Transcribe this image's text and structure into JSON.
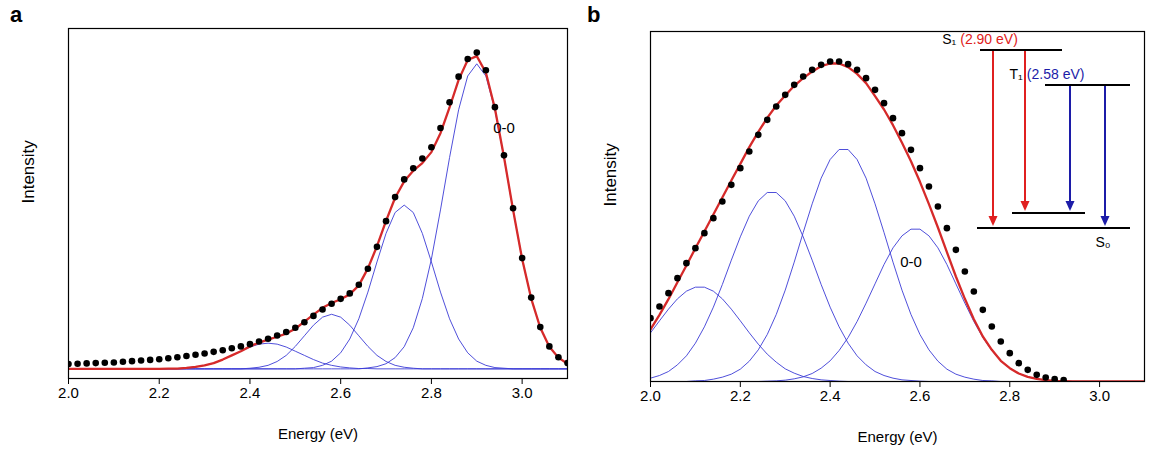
{
  "chart_data": [
    {
      "type": "line",
      "title": "a",
      "x_label": "Energy (eV)",
      "y_label": "Intensity",
      "xlim": [
        2.0,
        3.1
      ],
      "ylim": [
        -0.03,
        1.06
      ],
      "xticks": [
        {
          "value": 2.0,
          "label": "2.0"
        },
        {
          "value": 2.2,
          "label": "2.2"
        },
        {
          "value": 2.4,
          "label": "2.4"
        },
        {
          "value": 2.6,
          "label": "2.6"
        },
        {
          "value": 2.8,
          "label": "2.8"
        },
        {
          "value": 3.0,
          "label": "3.0"
        }
      ],
      "tick_labels": "x",
      "annotations": [
        {
          "text": "0-0",
          "x": 2.96,
          "y": 0.75
        }
      ],
      "x": [
        2,
        2.02,
        2.04,
        2.06,
        2.08,
        2.1,
        2.12,
        2.14,
        2.16,
        2.18,
        2.2,
        2.22,
        2.24,
        2.26,
        2.28,
        2.3,
        2.32,
        2.34,
        2.36,
        2.38,
        2.4,
        2.42,
        2.44,
        2.46,
        2.48,
        2.5,
        2.52,
        2.54,
        2.56,
        2.58,
        2.6,
        2.62,
        2.64,
        2.66,
        2.68,
        2.7,
        2.72,
        2.74,
        2.76,
        2.78,
        2.8,
        2.82,
        2.84,
        2.86,
        2.88,
        2.9,
        2.92,
        2.94,
        2.96,
        2.98,
        3,
        3.02,
        3.04,
        3.06,
        3.08,
        3.1
      ],
      "series": [
        {
          "type": "line",
          "color": "#3b3bd6",
          "line_style": "solid",
          "values": [
            0,
            0,
            0,
            0,
            0,
            0,
            0,
            0,
            0,
            0,
            0,
            0,
            0,
            0,
            0,
            0,
            0,
            0,
            0,
            0,
            0,
            0,
            0,
            0,
            0,
            0,
            0,
            0,
            0,
            0,
            0,
            0,
            0,
            0.003,
            0.007,
            0.016,
            0.035,
            0.069,
            0.128,
            0.219,
            0.342,
            0.495,
            0.658,
            0.807,
            0.912,
            0.95,
            0.912,
            0.807,
            0.658,
            0.495,
            0.342,
            0.219,
            0.128,
            0.069,
            0.035,
            0.016
          ]
        },
        {
          "type": "line",
          "color": "#3b3bd6",
          "line_style": "solid",
          "values": [
            0,
            0,
            0,
            0,
            0,
            0,
            0,
            0,
            0,
            0,
            0,
            0,
            0,
            0,
            0,
            0,
            0,
            0,
            0,
            0,
            0,
            0,
            0,
            0,
            0,
            0,
            0.002,
            0.004,
            0.011,
            0.024,
            0.05,
            0.093,
            0.156,
            0.239,
            0.333,
            0.422,
            0.487,
            0.51,
            0.487,
            0.422,
            0.333,
            0.239,
            0.156,
            0.093,
            0.05,
            0.024,
            0.011,
            0.004,
            0.002,
            0,
            0,
            0,
            0,
            0,
            0,
            0
          ]
        },
        {
          "type": "line",
          "color": "#3b3bd6",
          "line_style": "solid",
          "values": [
            0,
            0,
            0,
            0,
            0,
            0,
            0,
            0,
            0,
            0,
            0,
            0,
            0,
            0,
            0,
            0,
            0,
            0,
            0,
            0,
            0.002,
            0.005,
            0.011,
            0.023,
            0.042,
            0.07,
            0.103,
            0.136,
            0.161,
            0.17,
            0.161,
            0.136,
            0.103,
            0.07,
            0.042,
            0.023,
            0.011,
            0.005,
            0.002,
            0,
            0,
            0,
            0,
            0,
            0,
            0,
            0,
            0,
            0,
            0,
            0,
            0,
            0,
            0,
            0,
            0
          ]
        },
        {
          "type": "line",
          "color": "#3b3bd6",
          "line_style": "solid",
          "values": [
            0,
            0,
            0,
            0,
            0,
            0,
            0,
            0,
            0,
            0,
            0,
            0.001,
            0.001,
            0.003,
            0.006,
            0.011,
            0.018,
            0.029,
            0.042,
            0.055,
            0.068,
            0.077,
            0.08,
            0.077,
            0.068,
            0.055,
            0.042,
            0.029,
            0.018,
            0.011,
            0.006,
            0.003,
            0.001,
            0.001,
            0,
            0,
            0,
            0,
            0,
            0,
            0,
            0,
            0,
            0,
            0,
            0,
            0,
            0,
            0,
            0,
            0,
            0,
            0,
            0,
            0,
            0
          ]
        },
        {
          "type": "line",
          "color": "#d62a2a",
          "line_style": "thick",
          "values": [
            0,
            0,
            0,
            0,
            0,
            0,
            0,
            0,
            0,
            0,
            0,
            0.001,
            0.001,
            0.003,
            0.006,
            0.011,
            0.018,
            0.029,
            0.042,
            0.055,
            0.07,
            0.082,
            0.091,
            0.1,
            0.11,
            0.125,
            0.147,
            0.169,
            0.19,
            0.205,
            0.217,
            0.232,
            0.26,
            0.313,
            0.382,
            0.461,
            0.533,
            0.584,
            0.617,
            0.641,
            0.675,
            0.734,
            0.814,
            0.9,
            0.962,
            0.974,
            0.923,
            0.811,
            0.66,
            0.495,
            0.342,
            0.219,
            0.128,
            0.069,
            0.035,
            0.016
          ]
        },
        {
          "type": "scatter",
          "color": "#000000",
          "marker": "circle",
          "values": [
            0.015,
            0.016,
            0.017,
            0.018,
            0.019,
            0.02,
            0.022,
            0.024,
            0.026,
            0.028,
            0.03,
            0.033,
            0.036,
            0.04,
            0.044,
            0.048,
            0.053,
            0.058,
            0.064,
            0.07,
            0.077,
            0.085,
            0.094,
            0.104,
            0.115,
            0.128,
            0.145,
            0.165,
            0.185,
            0.203,
            0.218,
            0.235,
            0.262,
            0.312,
            0.38,
            0.46,
            0.535,
            0.59,
            0.625,
            0.655,
            0.69,
            0.75,
            0.83,
            0.91,
            0.965,
            0.985,
            0.93,
            0.815,
            0.665,
            0.5,
            0.345,
            0.222,
            0.13,
            0.07,
            0.036,
            0.018
          ]
        }
      ]
    },
    {
      "type": "line",
      "title": "b",
      "x_label": "Energy (eV)",
      "y_label": "Intensity",
      "xlim": [
        2.0,
        3.1
      ],
      "ylim": [
        0,
        1.05
      ],
      "xticks": [
        {
          "value": 2.0,
          "label": "2.0"
        },
        {
          "value": 2.2,
          "label": "2.2"
        },
        {
          "value": 2.4,
          "label": "2.4"
        },
        {
          "value": 2.6,
          "label": "2.6"
        },
        {
          "value": 2.8,
          "label": "2.8"
        },
        {
          "value": 3.0,
          "label": "3.0"
        }
      ],
      "tick_labels": "x",
      "annotations": [
        {
          "text": "0-0",
          "x": 2.58,
          "y": 0.357
        }
      ],
      "inset": {
        "levels": [
          {
            "label": "S₁",
            "energy_label": "(2.90 eV)",
            "color": "#e02020"
          },
          {
            "label": "T₁",
            "energy_label": "(2.58 eV)",
            "color": "#1c1ca8"
          },
          {
            "label": "S₀"
          }
        ]
      },
      "x": [
        2,
        2.02,
        2.04,
        2.06,
        2.08,
        2.1,
        2.12,
        2.14,
        2.16,
        2.18,
        2.2,
        2.22,
        2.24,
        2.26,
        2.28,
        2.3,
        2.32,
        2.34,
        2.36,
        2.38,
        2.4,
        2.42,
        2.44,
        2.46,
        2.48,
        2.5,
        2.52,
        2.54,
        2.56,
        2.58,
        2.6,
        2.62,
        2.64,
        2.66,
        2.68,
        2.7,
        2.72,
        2.74,
        2.76,
        2.78,
        2.8,
        2.82,
        2.84,
        2.86,
        2.88,
        2.9,
        2.92,
        2.94,
        2.96,
        2.98,
        3,
        3.02,
        3.04,
        3.06,
        3.08,
        3.1
      ],
      "series": [
        {
          "type": "line",
          "color": "#3b3bd6",
          "line_style": "solid",
          "values": [
            0.146,
            0.182,
            0.217,
            0.248,
            0.271,
            0.283,
            0.283,
            0.271,
            0.248,
            0.217,
            0.182,
            0.146,
            0.112,
            0.082,
            0.058,
            0.038,
            0.025,
            0.015,
            0.009,
            0.005,
            0.003,
            0.001,
            0,
            0,
            0,
            0,
            0,
            0,
            0,
            0,
            0,
            0,
            0,
            0,
            0,
            0,
            0,
            0,
            0,
            0,
            0,
            0,
            0,
            0,
            0,
            0,
            0,
            0,
            0,
            0,
            0,
            0,
            0,
            0,
            0,
            0
          ]
        },
        {
          "type": "line",
          "color": "#3b3bd6",
          "line_style": "solid",
          "values": [
            0.01,
            0.018,
            0.03,
            0.05,
            0.077,
            0.115,
            0.164,
            0.223,
            0.291,
            0.364,
            0.434,
            0.496,
            0.542,
            0.567,
            0.567,
            0.542,
            0.496,
            0.434,
            0.364,
            0.291,
            0.223,
            0.164,
            0.115,
            0.077,
            0.05,
            0.03,
            0.018,
            0.01,
            0.005,
            0.003,
            0.001,
            0,
            0,
            0,
            0,
            0,
            0,
            0,
            0,
            0,
            0,
            0,
            0,
            0,
            0,
            0,
            0,
            0,
            0,
            0,
            0,
            0,
            0,
            0,
            0,
            0
          ]
        },
        {
          "type": "line",
          "color": "#3b3bd6",
          "line_style": "solid",
          "values": [
            0,
            0,
            0,
            0,
            0,
            0.002,
            0.003,
            0.007,
            0.013,
            0.022,
            0.037,
            0.061,
            0.095,
            0.141,
            0.201,
            0.274,
            0.358,
            0.447,
            0.533,
            0.61,
            0.666,
            0.696,
            0.696,
            0.666,
            0.61,
            0.533,
            0.447,
            0.358,
            0.274,
            0.201,
            0.141,
            0.095,
            0.061,
            0.037,
            0.022,
            0.013,
            0.007,
            0.003,
            0.002,
            0,
            0,
            0,
            0,
            0,
            0,
            0,
            0,
            0,
            0,
            0,
            0,
            0,
            0,
            0,
            0,
            0
          ]
        },
        {
          "type": "line",
          "color": "#3b3bd6",
          "line_style": "solid",
          "values": [
            0,
            0,
            0,
            0,
            0,
            0,
            0,
            0,
            0,
            0,
            0,
            0,
            0,
            0.001,
            0.002,
            0.004,
            0.008,
            0.014,
            0.024,
            0.04,
            0.062,
            0.093,
            0.132,
            0.18,
            0.235,
            0.293,
            0.351,
            0.401,
            0.437,
            0.457,
            0.457,
            0.437,
            0.401,
            0.351,
            0.293,
            0.235,
            0.18,
            0.132,
            0.093,
            0.062,
            0.04,
            0.024,
            0.014,
            0.008,
            0.004,
            0.002,
            0.001,
            0,
            0,
            0,
            0,
            0,
            0,
            0,
            0,
            0
          ]
        },
        {
          "type": "line",
          "color": "#d62a2a",
          "line_style": "thick",
          "values": [
            0.156,
            0.2,
            0.247,
            0.298,
            0.348,
            0.4,
            0.45,
            0.501,
            0.552,
            0.603,
            0.653,
            0.703,
            0.749,
            0.791,
            0.828,
            0.858,
            0.887,
            0.91,
            0.93,
            0.946,
            0.954,
            0.954,
            0.943,
            0.923,
            0.895,
            0.856,
            0.816,
            0.769,
            0.716,
            0.661,
            0.599,
            0.532,
            0.462,
            0.388,
            0.315,
            0.248,
            0.187,
            0.135,
            0.095,
            0.062,
            0.04,
            0.024,
            0.014,
            0.008,
            0.004,
            0.002,
            0.001,
            0,
            0,
            0,
            0,
            0,
            0,
            0,
            0,
            0
          ]
        },
        {
          "type": "scatter",
          "color": "#000000",
          "marker": "circle",
          "values": [
            0.19,
            0.225,
            0.265,
            0.31,
            0.355,
            0.4,
            0.445,
            0.49,
            0.54,
            0.59,
            0.64,
            0.69,
            0.74,
            0.785,
            0.825,
            0.86,
            0.89,
            0.915,
            0.935,
            0.95,
            0.96,
            0.96,
            0.952,
            0.935,
            0.91,
            0.875,
            0.835,
            0.79,
            0.745,
            0.695,
            0.64,
            0.585,
            0.525,
            0.46,
            0.395,
            0.33,
            0.27,
            0.215,
            0.165,
            0.12,
            0.085,
            0.055,
            0.035,
            0.02,
            0.012,
            0.007,
            0.004,
            null,
            null,
            null,
            null,
            null,
            null,
            null,
            null,
            null
          ]
        }
      ]
    }
  ]
}
